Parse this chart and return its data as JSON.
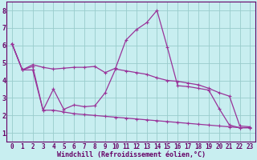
{
  "xlabel": "Windchill (Refroidissement éolien,°C)",
  "background_color": "#c8eef0",
  "grid_color": "#99cccc",
  "line_color": "#993399",
  "spine_color": "#660066",
  "tick_color": "#660066",
  "xlim": [
    -0.5,
    23.5
  ],
  "ylim": [
    0.5,
    8.5
  ],
  "xtick_labels": [
    "0",
    "1",
    "2",
    "3",
    "4",
    "5",
    "6",
    "7",
    "8",
    "9",
    "10",
    "11",
    "12",
    "13",
    "14",
    "15",
    "16",
    "17",
    "18",
    "19",
    "20",
    "21",
    "22",
    "23"
  ],
  "ytick_labels": [
    "1",
    "2",
    "3",
    "4",
    "5",
    "6",
    "7",
    "8"
  ],
  "series1_x": [
    0,
    1,
    2,
    3,
    4,
    5,
    6,
    7,
    8,
    9,
    10,
    11,
    12,
    13,
    14,
    15,
    16,
    17,
    18,
    19,
    20,
    21,
    22,
    23
  ],
  "series1_y": [
    6.1,
    4.6,
    4.9,
    4.75,
    4.65,
    4.7,
    4.75,
    4.75,
    4.8,
    4.45,
    4.7,
    6.3,
    6.9,
    7.3,
    8.0,
    5.9,
    3.7,
    3.65,
    3.55,
    3.45,
    2.4,
    1.45,
    1.3,
    1.3
  ],
  "series2_x": [
    0,
    1,
    2,
    3,
    4,
    5,
    6,
    7,
    8,
    9,
    10,
    11,
    12,
    13,
    14,
    15,
    16,
    17,
    18,
    19,
    20,
    21,
    22,
    23
  ],
  "series2_y": [
    6.1,
    4.6,
    4.8,
    2.3,
    3.5,
    2.35,
    2.6,
    2.5,
    2.55,
    3.3,
    4.65,
    4.55,
    4.45,
    4.35,
    4.15,
    4.0,
    3.95,
    3.85,
    3.75,
    3.55,
    3.3,
    3.1,
    1.4,
    1.35
  ],
  "series3_x": [
    0,
    1,
    2,
    3,
    4,
    5,
    6,
    7,
    8,
    9,
    10,
    11,
    12,
    13,
    14,
    15,
    16,
    17,
    18,
    19,
    20,
    21,
    22,
    23
  ],
  "series3_y": [
    6.1,
    4.6,
    4.6,
    2.3,
    2.3,
    2.2,
    2.1,
    2.05,
    2.0,
    1.95,
    1.9,
    1.85,
    1.8,
    1.75,
    1.7,
    1.65,
    1.6,
    1.55,
    1.5,
    1.45,
    1.4,
    1.35,
    1.3,
    1.3
  ],
  "xlabel_fontsize": 6,
  "tick_fontsize": 5.5,
  "linewidth": 0.9,
  "markersize": 3
}
